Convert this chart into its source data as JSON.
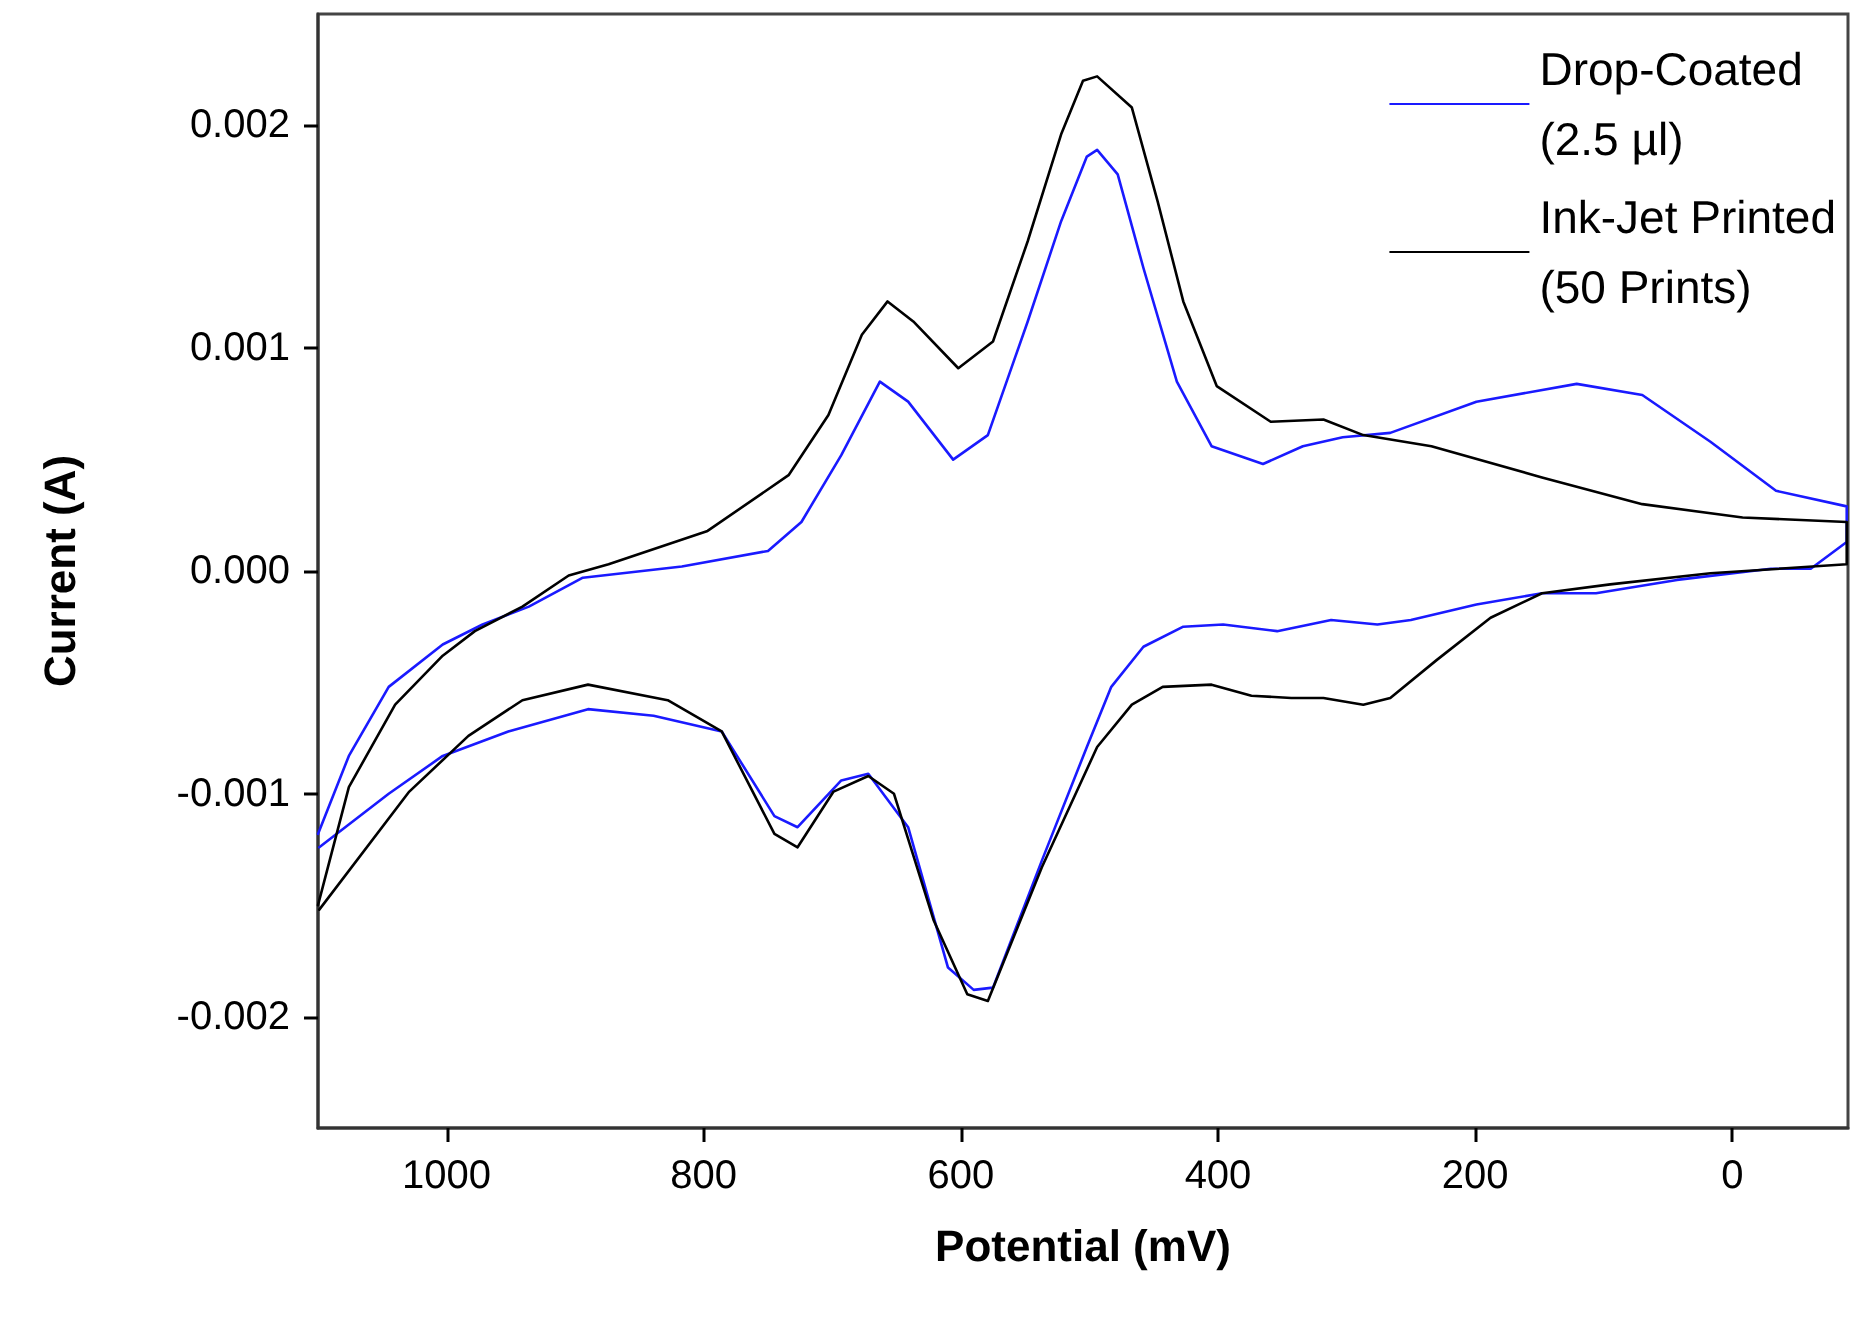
{
  "chart_data": {
    "type": "line",
    "xlabel": "Potential (mV)",
    "ylabel": "Current (A)",
    "xlim": [
      1100,
      -90
    ],
    "xticks": [
      1000,
      800,
      600,
      400,
      200,
      0
    ],
    "ylim": [
      -0.0025,
      0.0025
    ],
    "yticks": [
      {
        "value": -0.002,
        "label": "-0.002"
      },
      {
        "value": -0.001,
        "label": "-0.001"
      },
      {
        "value": 0,
        "label": "0.000"
      },
      {
        "value": 0.001,
        "label": "0.001"
      },
      {
        "value": 0.002,
        "label": "0.002"
      }
    ],
    "grid": false,
    "legend": "top right",
    "marker": "none",
    "line_style": "solid",
    "series": [
      {
        "name": "Drop-Coated\n(2.5 µl)",
        "color": "#1a1aff",
        "x": [
          1100,
          1076,
          1045,
          1003,
          972,
          936,
          894,
          817,
          750,
          724,
          693,
          663,
          641,
          606,
          579,
          548,
          522,
          502,
          494,
          478,
          458,
          432,
          405,
          365,
          334,
          303,
          266,
          199,
          121,
          70,
          17,
          -34,
          -89,
          -89,
          -61,
          -30,
          43,
          106,
          148,
          199,
          250,
          276,
          312,
          354,
          396,
          427,
          458,
          483,
          502,
          537,
          575,
          590,
          610,
          641,
          672,
          693,
          727,
          745,
          786,
          839,
          890,
          952,
          1003,
          1045,
          1099
        ],
        "values": [
          -0.00118,
          -0.00083,
          -0.00052,
          -0.00033,
          -0.00024,
          -0.00016,
          -3e-05,
          2e-05,
          9e-05,
          0.00022,
          0.00052,
          0.00085,
          0.00076,
          0.0005,
          0.00061,
          0.00112,
          0.00157,
          0.00186,
          0.00189,
          0.00178,
          0.00136,
          0.00085,
          0.00056,
          0.00048,
          0.00056,
          0.0006,
          0.00062,
          0.00076,
          0.00084,
          0.00079,
          0.00058,
          0.00036,
          0.00029,
          0.00013,
          1e-05,
          1e-05,
          -4e-05,
          -0.0001,
          -0.0001,
          -0.00015,
          -0.00022,
          -0.00024,
          -0.00022,
          -0.00027,
          -0.00024,
          -0.00025,
          -0.00034,
          -0.00052,
          -0.00079,
          -0.0013,
          -0.00187,
          -0.00188,
          -0.00178,
          -0.00115,
          -0.00091,
          -0.00094,
          -0.00115,
          -0.0011,
          -0.00072,
          -0.00065,
          -0.00062,
          -0.00072,
          -0.00083,
          -0.001,
          -0.00124
        ]
      },
      {
        "name": "Ink-Jet Printed\n(50 Prints)",
        "color": "#000000",
        "x": [
          1100,
          1076,
          1040,
          1003,
          978,
          941,
          905,
          874,
          797,
          734,
          703,
          677,
          657,
          637,
          602,
          575,
          548,
          522,
          505,
          494,
          467,
          447,
          427,
          401,
          359,
          318,
          287,
          234,
          148,
          70,
          -8,
          -89,
          -89,
          17,
          95,
          148,
          188,
          230,
          266,
          287,
          318,
          343,
          374,
          405,
          443,
          467,
          494,
          537,
          579,
          595,
          621,
          652,
          672,
          699,
          727,
          745,
          786,
          828,
          890,
          941,
          983,
          1029,
          1099
        ],
        "values": [
          -0.0015,
          -0.00097,
          -0.0006,
          -0.00038,
          -0.00027,
          -0.00016,
          -2e-05,
          3e-05,
          0.00018,
          0.00043,
          0.0007,
          0.00106,
          0.00121,
          0.00112,
          0.00091,
          0.00103,
          0.00148,
          0.00196,
          0.0022,
          0.00222,
          0.00208,
          0.00166,
          0.00121,
          0.00083,
          0.00067,
          0.00068,
          0.00061,
          0.00056,
          0.00042,
          0.0003,
          0.00024,
          0.00022,
          3e-05,
          -1e-05,
          -6e-05,
          -0.0001,
          -0.00021,
          -0.0004,
          -0.00057,
          -0.0006,
          -0.00057,
          -0.00057,
          -0.00056,
          -0.00051,
          -0.00052,
          -0.0006,
          -0.00079,
          -0.00133,
          -0.00193,
          -0.0019,
          -0.00157,
          -0.001,
          -0.00092,
          -0.00099,
          -0.00124,
          -0.00118,
          -0.00072,
          -0.00058,
          -0.00051,
          -0.00058,
          -0.00074,
          -0.00099,
          -0.00152
        ]
      }
    ]
  }
}
